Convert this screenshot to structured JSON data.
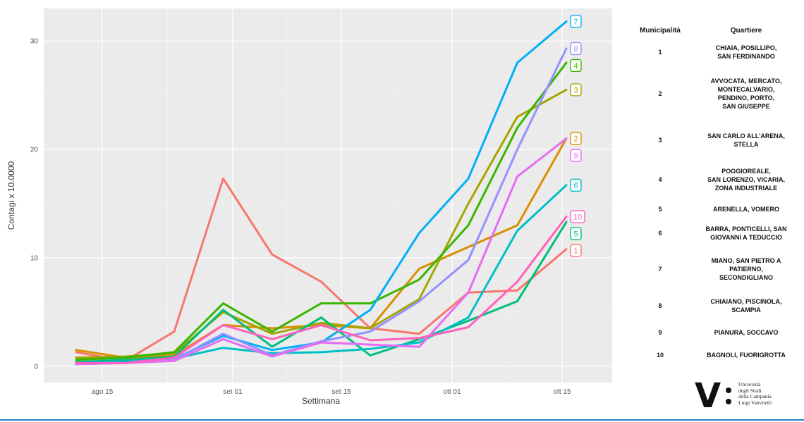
{
  "chart_data": {
    "type": "line",
    "xlabel": "Settimana",
    "ylabel": "Contagi x 10.0000",
    "x_ticks": [
      "ago 15",
      "set 01",
      "set 15",
      "ott 01",
      "ott 15"
    ],
    "y_ticks": [
      "0",
      "10",
      "20",
      "30"
    ],
    "ylim": [
      -1.5,
      33
    ],
    "grid": true,
    "background": "#ebebeb",
    "x": [
      "ago 10",
      "ago 17",
      "ago 24",
      "ago 31",
      "set 07",
      "set 14",
      "set 21",
      "set 28",
      "ott 05",
      "ott 12",
      "ott 19"
    ],
    "series": [
      {
        "name": "1",
        "color": "#f8766d",
        "values": [
          1.3,
          0.5,
          3.2,
          17.3,
          10.3,
          7.8,
          3.5,
          3.0,
          6.8,
          7.0,
          10.8
        ]
      },
      {
        "name": "2",
        "color": "#d89000",
        "values": [
          1.5,
          0.8,
          1.0,
          3.8,
          3.5,
          3.8,
          3.5,
          9.0,
          11.0,
          13.0,
          21.0
        ]
      },
      {
        "name": "3",
        "color": "#a3a500",
        "values": [
          0.8,
          0.9,
          1.2,
          5.0,
          3.0,
          4.0,
          3.5,
          6.2,
          15.0,
          23.0,
          25.5
        ]
      },
      {
        "name": "4",
        "color": "#39b600",
        "values": [
          0.6,
          0.8,
          1.3,
          5.8,
          3.2,
          5.8,
          5.8,
          8.0,
          13.0,
          22.0,
          28.0
        ]
      },
      {
        "name": "5",
        "color": "#00bf7d",
        "values": [
          0.4,
          0.6,
          0.9,
          5.2,
          1.8,
          4.5,
          1.0,
          2.5,
          4.2,
          6.0,
          13.3
        ]
      },
      {
        "name": "6",
        "color": "#00bfc4",
        "values": [
          0.3,
          0.4,
          0.7,
          1.7,
          1.2,
          1.3,
          1.6,
          2.2,
          4.5,
          12.5,
          16.7
        ]
      },
      {
        "name": "7",
        "color": "#00b0f6",
        "values": [
          0.3,
          0.4,
          0.7,
          2.8,
          1.5,
          2.2,
          5.2,
          12.3,
          17.3,
          28.0,
          31.8
        ]
      },
      {
        "name": "8",
        "color": "#9590ff",
        "values": [
          0.2,
          0.3,
          0.6,
          3.0,
          1.0,
          2.3,
          3.2,
          6.0,
          9.8,
          20.0,
          29.3
        ]
      },
      {
        "name": "9",
        "color": "#e76bf3",
        "values": [
          0.2,
          0.3,
          0.5,
          2.5,
          0.9,
          2.2,
          2.0,
          1.8,
          6.8,
          17.5,
          21.0
        ]
      },
      {
        "name": "10",
        "color": "#ff62bc",
        "values": [
          0.3,
          0.3,
          0.8,
          3.8,
          2.5,
          3.8,
          2.4,
          2.6,
          3.6,
          7.8,
          13.8
        ]
      }
    ]
  },
  "table": {
    "header_municipalita": "Municipalità",
    "header_quartiere": "Quartiere",
    "rows": [
      {
        "num": "1",
        "quartiere": "CHIAIA, POSILLIPO,\nSAN FERDINANDO"
      },
      {
        "num": "2",
        "quartiere": "AVVOCATA, MERCATO,\nMONTECALVARIO,\nPENDINO, PORTO,\nSAN GIUSEPPE"
      },
      {
        "num": "3",
        "quartiere": "SAN CARLO ALL'ARENA,\nSTELLA"
      },
      {
        "num": "4",
        "quartiere": "POGGIOREALE,\nSAN LORENZO, VICARIA,\nZONA INDUSTRIALE"
      },
      {
        "num": "5",
        "quartiere": "ARENELLA, VOMERO"
      },
      {
        "num": "6",
        "quartiere": "BARRA, PONTICELLI, SAN\nGIOVANNI A TEDUCCIO"
      },
      {
        "num": "7",
        "quartiere": "MIANO, SAN PIETRO A\nPATIERNO,\nSECONDIGLIANO"
      },
      {
        "num": "8",
        "quartiere": "CHIAIANO, PISCINOLA,\nSCAMPIA"
      },
      {
        "num": "9",
        "quartiere": "PIANURA, SOCCAVO"
      },
      {
        "num": "10",
        "quartiere": "BAGNOLI, FUORIGROTTA"
      }
    ]
  },
  "logo": {
    "mark": "V",
    "text": "Università\ndegli Studi\ndella Campania\nLuigi Vanvitelli"
  }
}
